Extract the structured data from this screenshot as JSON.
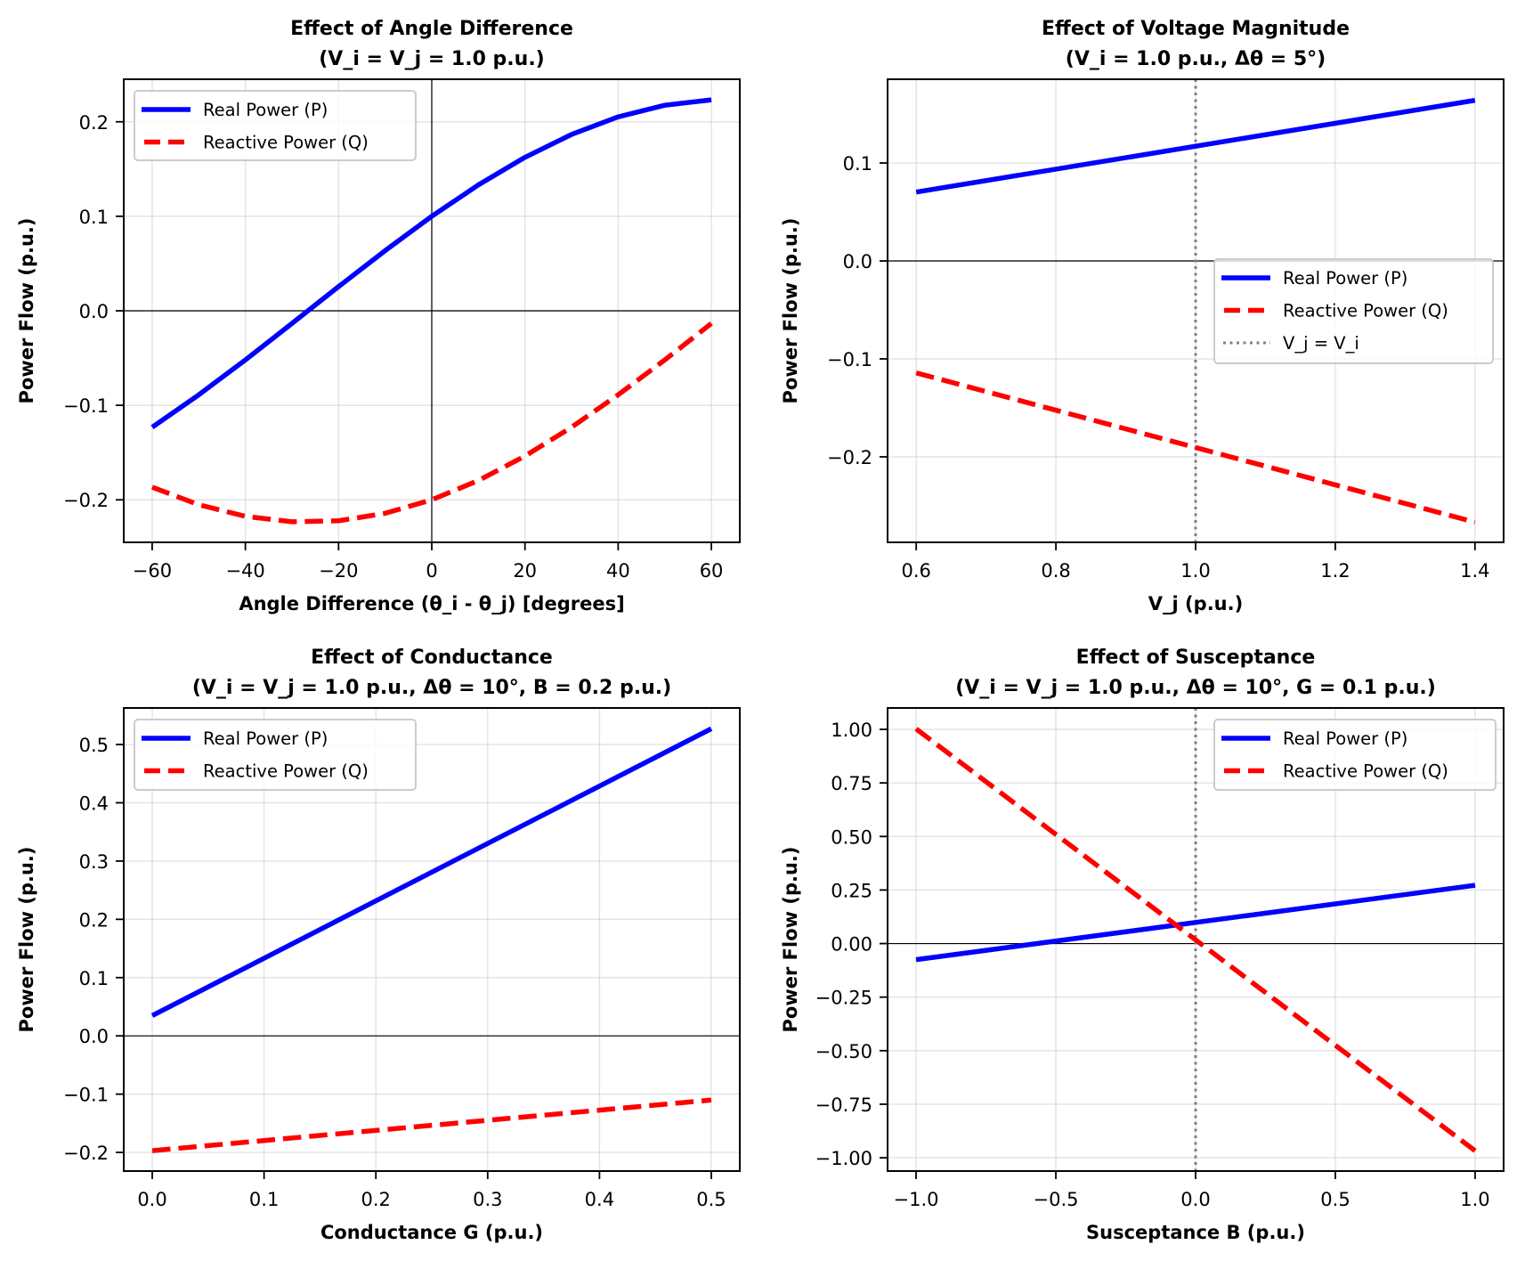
{
  "figure": {
    "panels": 4,
    "layout": "2x2"
  },
  "chart_data": [
    {
      "id": "angle",
      "type": "line",
      "title": [
        "Effect of Angle Difference",
        "(V_i = V_j = 1.0 p.u.)"
      ],
      "xlabel": "Angle Difference (θ_i - θ_j) [degrees]",
      "ylabel": "Power Flow (p.u.)",
      "xlim": [
        -66.1,
        66.1
      ],
      "ylim": [
        -0.245,
        0.245
      ],
      "xticks": [
        -60,
        -40,
        -20,
        0,
        20,
        40,
        60
      ],
      "xtick_labels": [
        "−60",
        "−40",
        "−20",
        "0",
        "20",
        "40",
        "60"
      ],
      "yticks": [
        -0.2,
        -0.1,
        0.0,
        0.1,
        0.2
      ],
      "ytick_labels": [
        "−0.2",
        "−0.1",
        "0.0",
        "0.1",
        "0.2"
      ],
      "grid": true,
      "hline": 0,
      "vline": 0,
      "legend_position": "upper-left",
      "x": [
        -60,
        -50,
        -40,
        -30,
        -20,
        -10,
        0,
        10,
        20,
        30,
        40,
        50,
        60
      ],
      "series": [
        {
          "name": "Real Power (P)",
          "color": "#0000ff",
          "style": "solid",
          "values": [
            -0.1232,
            -0.0889,
            -0.052,
            -0.0134,
            0.0256,
            0.0637,
            0.1,
            0.1332,
            0.1624,
            0.1866,
            0.2052,
            0.2175,
            0.2232
          ]
        },
        {
          "name": "Reactive Power (Q)",
          "color": "#ff0000",
          "style": "dashed",
          "values": [
            -0.1866,
            -0.2052,
            -0.2175,
            -0.2232,
            -0.2222,
            -0.2143,
            -0.2,
            -0.1796,
            -0.1537,
            -0.1232,
            -0.0889,
            -0.052,
            -0.0134
          ]
        }
      ]
    },
    {
      "id": "voltage",
      "type": "line",
      "title": [
        "Effect of Voltage Magnitude",
        "(V_i = 1.0 p.u., Δθ = 5°)"
      ],
      "xlabel": "V_j (p.u.)",
      "ylabel": "Power Flow (p.u.)",
      "xlim": [
        0.559,
        1.441
      ],
      "ylim": [
        -0.2873,
        0.1855
      ],
      "xticks": [
        0.6,
        0.8,
        1.0,
        1.2,
        1.4
      ],
      "xtick_labels": [
        "0.6",
        "0.8",
        "1.0",
        "1.2",
        "1.4"
      ],
      "yticks": [
        -0.2,
        -0.1,
        0.0,
        0.1
      ],
      "ytick_labels": [
        "−0.2",
        "−0.1",
        "0.0",
        "0.1"
      ],
      "grid": true,
      "hline": 0,
      "vline_ref": {
        "x": 1.0,
        "label": "V_j = V_i",
        "color": "#808080",
        "style": "dotted"
      },
      "legend_position": "center-right",
      "x": [
        0.6,
        1.4
      ],
      "series": [
        {
          "name": "Real Power (P)",
          "color": "#0000ff",
          "style": "solid",
          "values": [
            0.0703,
            0.164
          ]
        },
        {
          "name": "Reactive Power (Q)",
          "color": "#ff0000",
          "style": "dashed",
          "values": [
            -0.1143,
            -0.2667
          ]
        }
      ]
    },
    {
      "id": "conductance",
      "type": "line",
      "title": [
        "Effect of Conductance",
        "(V_i = V_j = 1.0 p.u., Δθ = 10°, B = 0.2 p.u.)"
      ],
      "xlabel": "Conductance G (p.u.)",
      "ylabel": "Power Flow (p.u.)",
      "xlim": [
        -0.0255,
        0.5255
      ],
      "ylim": [
        -0.232,
        0.5627
      ],
      "xticks": [
        0.0,
        0.1,
        0.2,
        0.3,
        0.4,
        0.5
      ],
      "xtick_labels": [
        "0.0",
        "0.1",
        "0.2",
        "0.3",
        "0.4",
        "0.5"
      ],
      "yticks": [
        -0.2,
        -0.1,
        0.0,
        0.1,
        0.2,
        0.3,
        0.4,
        0.5
      ],
      "ytick_labels": [
        "−0.2",
        "−0.1",
        "0.0",
        "0.1",
        "0.2",
        "0.3",
        "0.4",
        "0.5"
      ],
      "grid": true,
      "hline": 0,
      "legend_position": "upper-left",
      "x": [
        0.0,
        0.5
      ],
      "series": [
        {
          "name": "Real Power (P)",
          "color": "#0000ff",
          "style": "solid",
          "values": [
            0.0347,
            0.5271
          ]
        },
        {
          "name": "Reactive Power (Q)",
          "color": "#ff0000",
          "style": "dashed",
          "values": [
            -0.197,
            -0.1101
          ]
        }
      ]
    },
    {
      "id": "susceptance",
      "type": "line",
      "title": [
        "Effect of Susceptance",
        "(V_i = V_j = 1.0 p.u., Δθ = 10°, G = 0.1 p.u.)"
      ],
      "xlabel": "Susceptance B (p.u.)",
      "ylabel": "Power Flow (p.u.)",
      "xlim": [
        -1.102,
        1.102
      ],
      "ylim": [
        -1.062,
        1.0998
      ],
      "xticks": [
        -1.0,
        -0.5,
        0.0,
        0.5,
        1.0
      ],
      "xtick_labels": [
        "−1.0",
        "−0.5",
        "0.0",
        "0.5",
        "1.0"
      ],
      "yticks": [
        -1.0,
        -0.75,
        -0.5,
        -0.25,
        0.0,
        0.25,
        0.5,
        0.75,
        1.0
      ],
      "ytick_labels": [
        "−1.00",
        "−0.75",
        "−0.50",
        "−0.25",
        "0.00",
        "0.25",
        "0.50",
        "0.75",
        "1.00"
      ],
      "grid": true,
      "hline": 0,
      "vline_ref": {
        "x": 0.0,
        "label": null,
        "color": "#808080",
        "style": "dotted"
      },
      "legend_position": "upper-right",
      "x": [
        -1.0,
        1.0
      ],
      "series": [
        {
          "name": "Real Power (P)",
          "color": "#0000ff",
          "style": "solid",
          "values": [
            -0.0751,
            0.2721
          ]
        },
        {
          "name": "Reactive Power (Q)",
          "color": "#ff0000",
          "style": "dashed",
          "values": [
            1.0022,
            -0.9674
          ]
        }
      ]
    }
  ]
}
